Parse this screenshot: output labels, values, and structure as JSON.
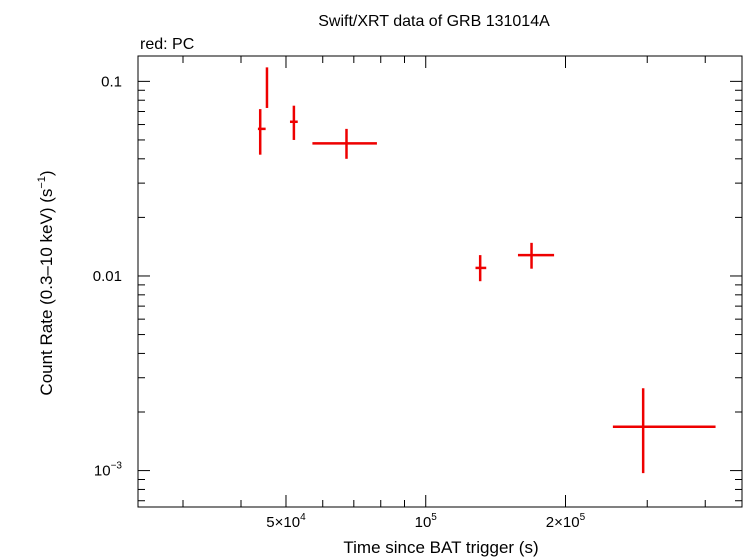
{
  "chart_data": {
    "type": "scatter",
    "title": "Swift/XRT data of GRB 131014A",
    "subtitle": "red: PC",
    "xlabel": "Time since BAT trigger (s)",
    "ylabel": "Count Rate (0.3–10 keV) (s",
    "ylabel_sup": "−1",
    "ylabel_close": ")",
    "xscale": "log",
    "yscale": "log",
    "xlim": [
      24000,
      480000
    ],
    "ylim": [
      0.00065,
      0.135
    ],
    "grid": false,
    "series_color": "#ee0000",
    "x_ticks": [
      {
        "value": 50000,
        "base": "5×10",
        "exp": "4"
      },
      {
        "value": 100000,
        "base": "10",
        "exp": "5"
      },
      {
        "value": 200000,
        "base": "2×10",
        "exp": "5"
      }
    ],
    "y_ticks": [
      {
        "value": 0.1,
        "base": "0.1",
        "exp": ""
      },
      {
        "value": 0.01,
        "base": "0.01",
        "exp": ""
      },
      {
        "value": 0.001,
        "base": "10",
        "exp": "−3"
      }
    ],
    "series": [
      {
        "points": [
          {
            "x": 44000,
            "x_lo": 43500,
            "x_hi": 45200,
            "y": 0.057,
            "y_lo": 0.042,
            "y_hi": 0.072
          },
          {
            "x": 45500,
            "x_lo": 45300,
            "x_hi": 45700,
            "y": 0.093,
            "y_lo": 0.073,
            "y_hi": 0.118
          },
          {
            "x": 52000,
            "x_lo": 51000,
            "x_hi": 53000,
            "y": 0.062,
            "y_lo": 0.05,
            "y_hi": 0.075
          },
          {
            "x": 67500,
            "x_lo": 57000,
            "x_hi": 78500,
            "y": 0.048,
            "y_lo": 0.04,
            "y_hi": 0.057
          },
          {
            "x": 131000,
            "x_lo": 128000,
            "x_hi": 135000,
            "y": 0.011,
            "y_lo": 0.0094,
            "y_hi": 0.0128
          },
          {
            "x": 169000,
            "x_lo": 158000,
            "x_hi": 189000,
            "y": 0.0128,
            "y_lo": 0.0109,
            "y_hi": 0.0148
          },
          {
            "x": 294000,
            "x_lo": 253000,
            "x_hi": 421000,
            "y": 0.00168,
            "y_lo": 0.00097,
            "y_hi": 0.00265
          }
        ]
      }
    ]
  }
}
